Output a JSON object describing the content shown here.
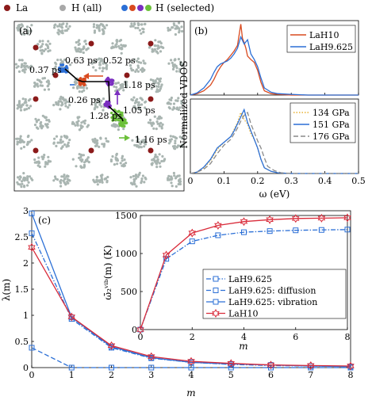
{
  "top_legend": {
    "items": [
      {
        "label": "La",
        "color": "#8b1a1a"
      },
      {
        "label": "H (all)",
        "color": "#a8a8a8"
      },
      {
        "label": "H (selected)",
        "colors": [
          "#2b6fd6",
          "#d94a1f",
          "#7b2fc0",
          "#6cc03a"
        ]
      }
    ]
  },
  "panel_a": {
    "label": "(a)",
    "colors": {
      "la": "#8b1a1a",
      "h_all": "#a9b5b1",
      "blue": "#2b6fd6",
      "orange": "#d94a1f",
      "purple": "#7b2fc0",
      "green": "#6cc03a"
    },
    "annotations": [
      {
        "text": "0.63 ps",
        "color": "#d94a1f"
      },
      {
        "text": "0.52 ps",
        "color": "#d94a1f"
      },
      {
        "text": "0.37 ps",
        "color": "#2b6fd6"
      },
      {
        "text": "1.18 ps",
        "color": "#7b2fc0"
      },
      {
        "text": "0.26 ps",
        "color": "#2b6fd6"
      },
      {
        "text": "1.05 ps",
        "color": "#7b2fc0"
      },
      {
        "text": "1.28 ps",
        "color": "#6cc03a"
      },
      {
        "text": "1.16 ps",
        "color": "#6cc03a"
      }
    ]
  },
  "chart_data": [
    {
      "id": "panel_b_top",
      "type": "line",
      "panel_label": "(b)",
      "ylabel": "Normalized VDOS",
      "xlim": [
        0,
        0.5
      ],
      "series": [
        {
          "name": "LaH10",
          "color": "#d94a1f",
          "x": [
            0,
            0.02,
            0.04,
            0.06,
            0.07,
            0.08,
            0.09,
            0.1,
            0.11,
            0.12,
            0.13,
            0.14,
            0.145,
            0.15,
            0.155,
            0.16,
            0.165,
            0.17,
            0.18,
            0.19,
            0.2,
            0.21,
            0.22,
            0.24,
            0.26,
            0.3,
            0.35,
            0.4,
            0.45,
            0.5
          ],
          "y": [
            0,
            0.02,
            0.06,
            0.14,
            0.22,
            0.32,
            0.4,
            0.46,
            0.5,
            0.56,
            0.62,
            0.7,
            0.85,
            1.0,
            0.8,
            0.74,
            0.66,
            0.55,
            0.5,
            0.46,
            0.35,
            0.18,
            0.06,
            0.02,
            0.01,
            0,
            0,
            0,
            0,
            0
          ]
        },
        {
          "name": "LaH9.625",
          "color": "#2b6fd6",
          "x": [
            0,
            0.02,
            0.04,
            0.06,
            0.07,
            0.08,
            0.09,
            0.1,
            0.11,
            0.12,
            0.13,
            0.14,
            0.15,
            0.16,
            0.17,
            0.18,
            0.19,
            0.2,
            0.21,
            0.22,
            0.24,
            0.26,
            0.3,
            0.35,
            0.4,
            0.45,
            0.5
          ],
          "y": [
            0,
            0.03,
            0.1,
            0.22,
            0.32,
            0.4,
            0.44,
            0.46,
            0.48,
            0.52,
            0.58,
            0.66,
            0.82,
            0.72,
            0.78,
            0.58,
            0.5,
            0.4,
            0.24,
            0.1,
            0.04,
            0.02,
            0.01,
            0,
            0,
            0,
            0
          ]
        }
      ]
    },
    {
      "id": "panel_b_bottom",
      "type": "line",
      "xlabel": "ω (eV)",
      "xlim": [
        0,
        0.5
      ],
      "xticks": [
        "0",
        "0.1",
        "0.2",
        "0.3",
        "0.4",
        "0.5"
      ],
      "series": [
        {
          "name": "134 GPa",
          "color": "#e8b030",
          "dash": "dotted",
          "x": [
            0,
            0.02,
            0.04,
            0.06,
            0.08,
            0.1,
            0.12,
            0.13,
            0.14,
            0.15,
            0.16,
            0.17,
            0.18,
            0.19,
            0.2,
            0.21,
            0.22,
            0.24,
            0.26,
            0.3,
            0.4,
            0.5
          ],
          "y": [
            0,
            0.02,
            0.08,
            0.18,
            0.34,
            0.44,
            0.52,
            0.62,
            0.72,
            0.86,
            0.76,
            0.7,
            0.56,
            0.48,
            0.36,
            0.2,
            0.08,
            0.03,
            0.01,
            0,
            0,
            0
          ]
        },
        {
          "name": "151 GPa",
          "color": "#2b6fd6",
          "dash": "solid",
          "x": [
            0,
            0.02,
            0.04,
            0.06,
            0.08,
            0.1,
            0.12,
            0.13,
            0.14,
            0.15,
            0.16,
            0.17,
            0.18,
            0.19,
            0.2,
            0.21,
            0.22,
            0.24,
            0.26,
            0.3,
            0.4,
            0.5
          ],
          "y": [
            0,
            0.02,
            0.09,
            0.2,
            0.36,
            0.44,
            0.52,
            0.6,
            0.7,
            0.8,
            0.9,
            0.72,
            0.6,
            0.48,
            0.36,
            0.2,
            0.08,
            0.03,
            0.01,
            0,
            0,
            0
          ]
        },
        {
          "name": "176 GPa",
          "color": "#8a8a8a",
          "dash": "dashed",
          "x": [
            0,
            0.02,
            0.04,
            0.06,
            0.08,
            0.1,
            0.12,
            0.13,
            0.14,
            0.15,
            0.16,
            0.17,
            0.18,
            0.19,
            0.2,
            0.21,
            0.22,
            0.23,
            0.25,
            0.27,
            0.3,
            0.4,
            0.5
          ],
          "y": [
            0,
            0.02,
            0.06,
            0.14,
            0.28,
            0.4,
            0.48,
            0.56,
            0.64,
            0.74,
            0.82,
            0.86,
            0.7,
            0.58,
            0.46,
            0.36,
            0.22,
            0.1,
            0.04,
            0.01,
            0,
            0,
            0
          ]
        }
      ]
    },
    {
      "id": "panel_c_main",
      "type": "line",
      "panel_label": "(c)",
      "xlabel": "m",
      "ylabel": "λ(m)",
      "xlim": [
        0,
        8
      ],
      "ylim": [
        0,
        3
      ],
      "xticks": [
        "0",
        "1",
        "2",
        "3",
        "4",
        "5",
        "6",
        "7",
        "8"
      ],
      "yticks": [
        "0",
        "0.5",
        "1",
        "1.5",
        "2",
        "2.5",
        "3"
      ],
      "x": [
        0,
        1,
        2,
        3,
        4,
        5,
        6,
        7,
        8
      ],
      "series": [
        {
          "name": "LaH9.625",
          "color": "#2b6fd6",
          "dash": "dashdot",
          "marker": "square",
          "values": [
            2.57,
            0.93,
            0.38,
            0.18,
            0.1,
            0.06,
            0.04,
            0.03,
            0.02
          ]
        },
        {
          "name": "LaH9.625: diffusion",
          "color": "#2b6fd6",
          "dash": "dashed",
          "marker": "square",
          "values": [
            0.38,
            0.0,
            0.0,
            0.0,
            0.0,
            0.0,
            0.0,
            0.0,
            0.0
          ]
        },
        {
          "name": "LaH9.625: vibration",
          "color": "#2b6fd6",
          "dash": "solid",
          "marker": "square",
          "values": [
            2.95,
            0.96,
            0.4,
            0.19,
            0.1,
            0.07,
            0.05,
            0.03,
            0.02
          ]
        },
        {
          "name": "LaH10",
          "color": "#d92b3a",
          "dash": "solid",
          "marker": "star",
          "values": [
            2.3,
            0.97,
            0.42,
            0.21,
            0.12,
            0.08,
            0.05,
            0.04,
            0.03
          ]
        }
      ]
    },
    {
      "id": "panel_c_inset",
      "type": "line",
      "xlabel": "m",
      "ylabel": "ω̄₂ᵛⁱᵇ(m) (K)",
      "xlim": [
        0,
        8
      ],
      "ylim": [
        0,
        1500
      ],
      "xticks": [
        "0",
        "2",
        "4",
        "6",
        "8"
      ],
      "yticks": [
        "0",
        "500",
        "1000",
        "1500"
      ],
      "x": [
        0,
        1,
        2,
        3,
        4,
        5,
        6,
        7,
        8
      ],
      "series": [
        {
          "name": "LaH9.625",
          "color": "#2b6fd6",
          "dash": "dashdot",
          "marker": "square",
          "values": [
            0,
            930,
            1160,
            1240,
            1280,
            1295,
            1305,
            1310,
            1315
          ]
        },
        {
          "name": "LaH10",
          "color": "#d92b3a",
          "dash": "solid",
          "marker": "star",
          "values": [
            0,
            980,
            1270,
            1370,
            1420,
            1445,
            1460,
            1465,
            1470
          ]
        }
      ]
    }
  ]
}
